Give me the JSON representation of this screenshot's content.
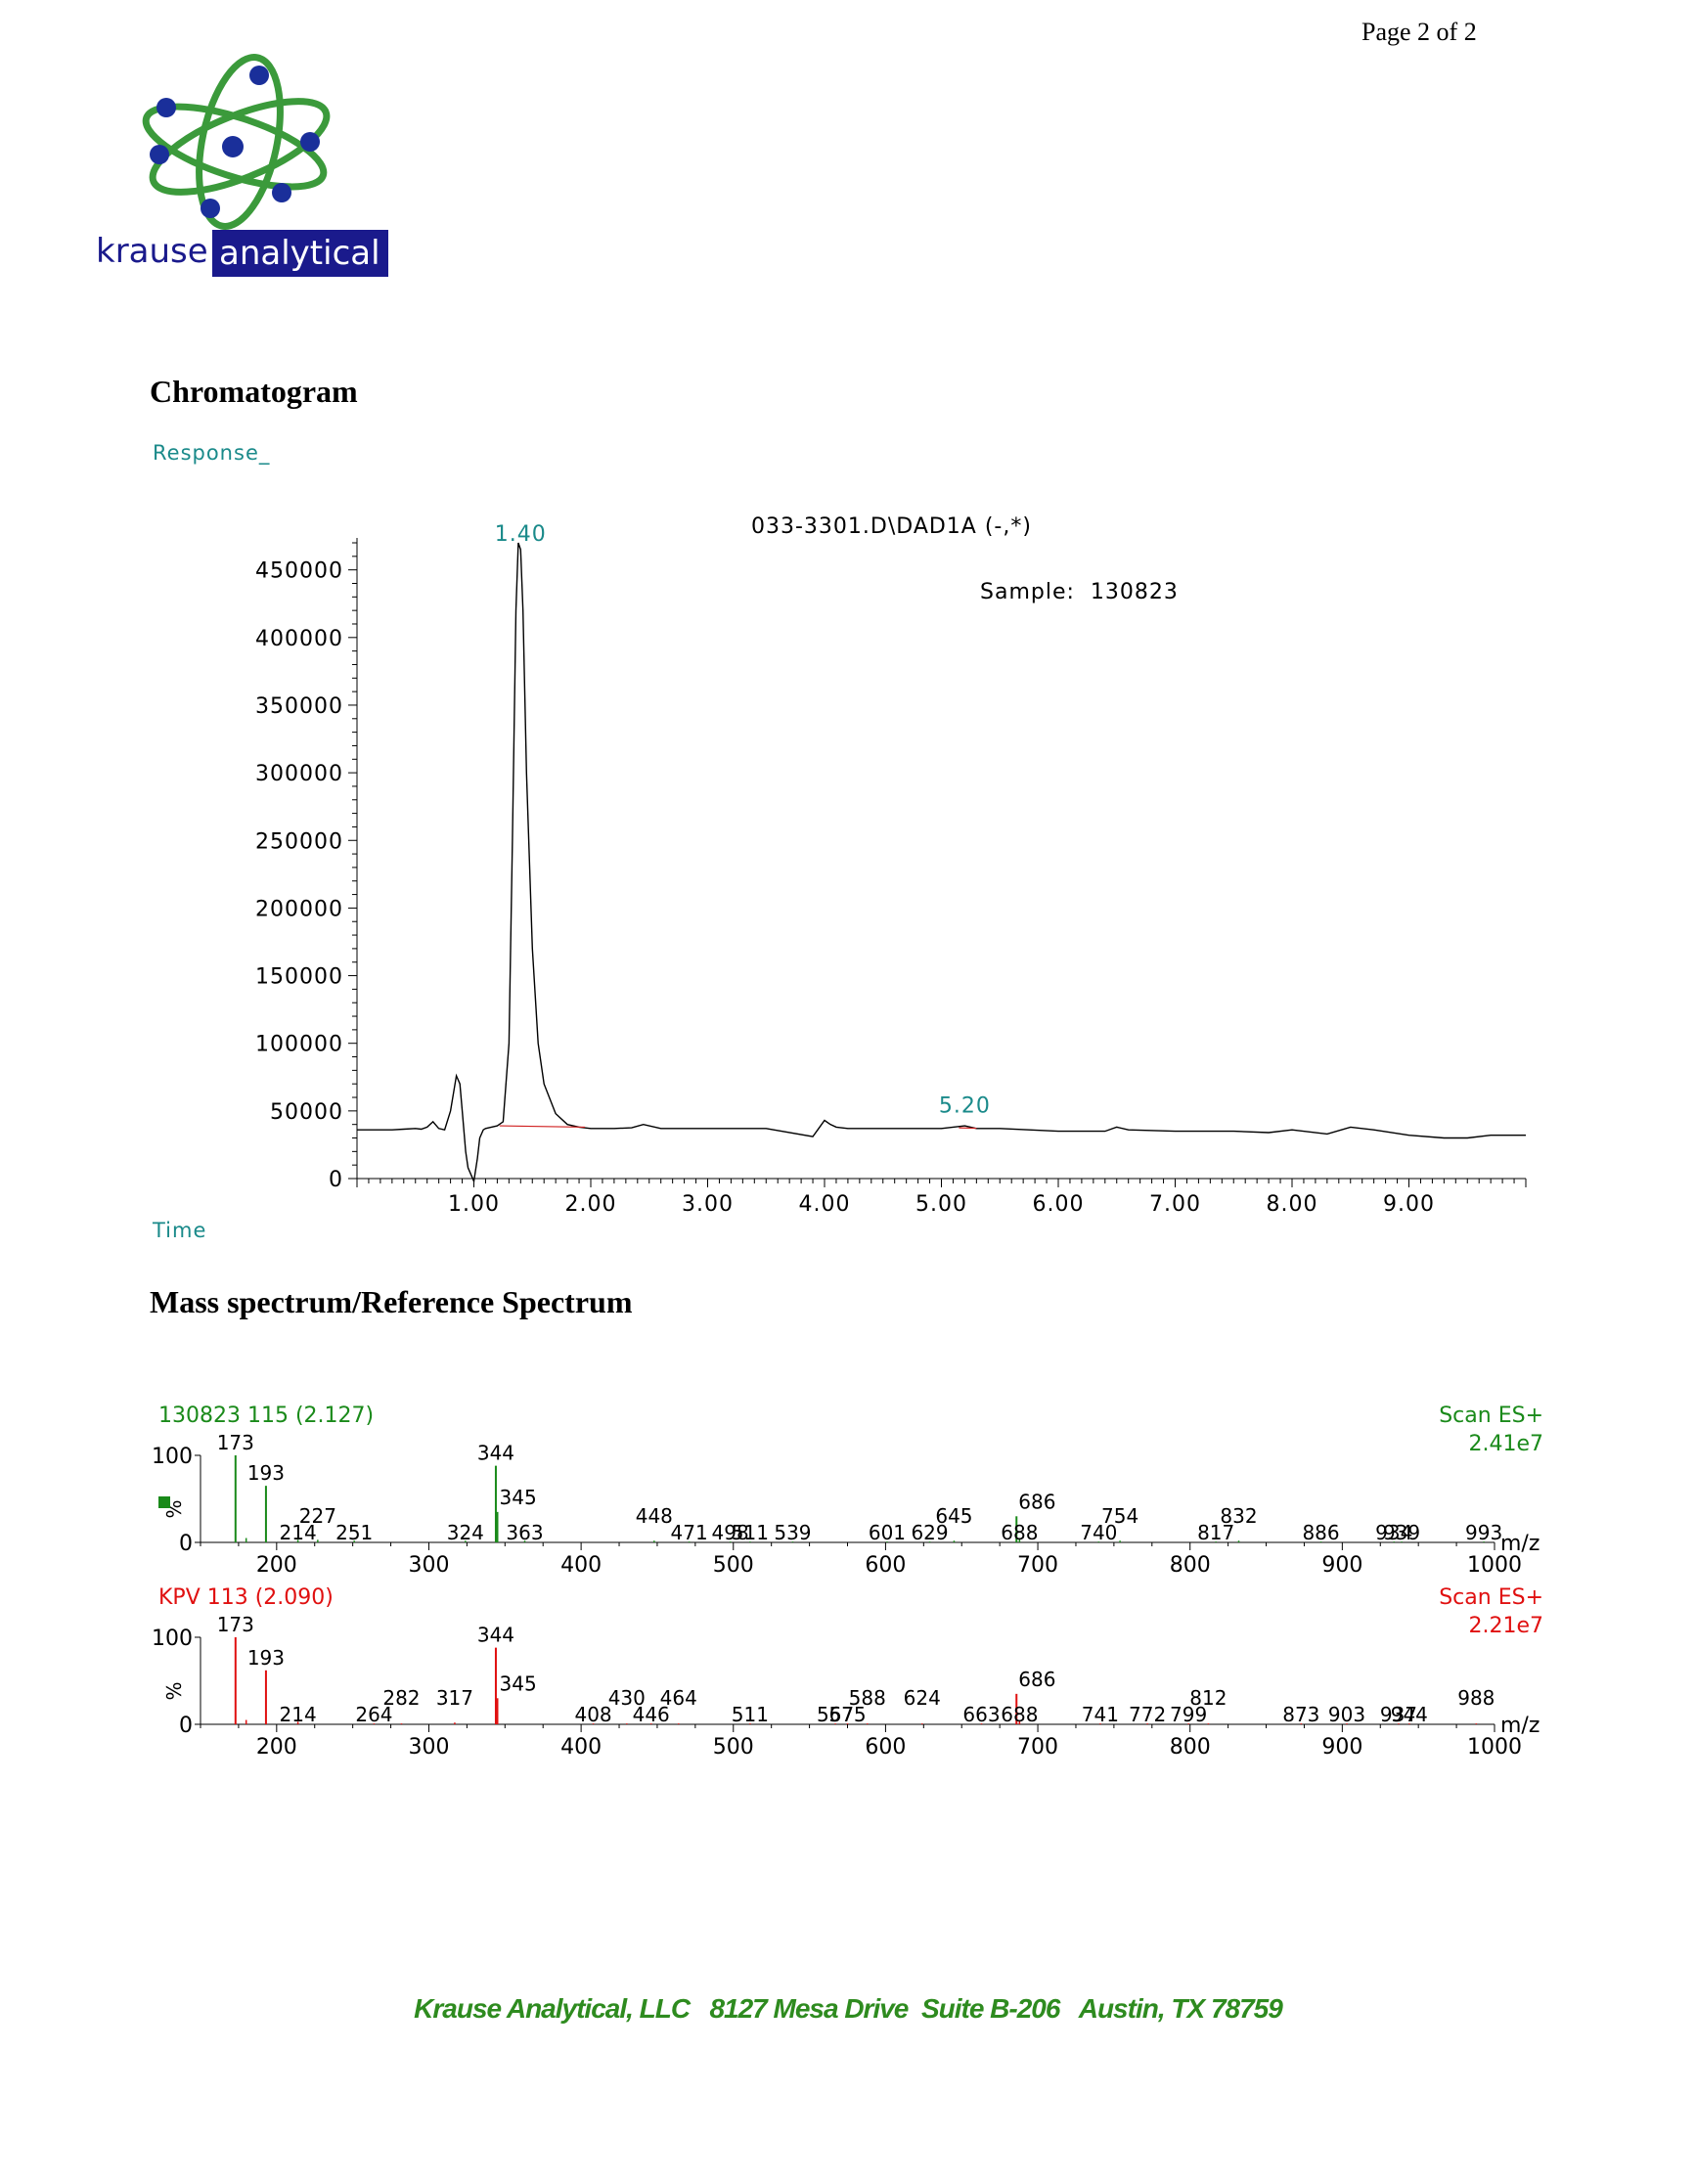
{
  "page": {
    "number": "Page 2 of 2"
  },
  "logo": {
    "word1": "krause",
    "word2": "analytical",
    "icon": "atom-icon",
    "colors": {
      "orbit": "#3b9a3b",
      "nucleus": "#1a2f9a",
      "text_blue": "#1a1a8c"
    }
  },
  "chromatogram": {
    "section_title": "Chromatogram",
    "ylabel": "Response_",
    "xlabel": "Time",
    "file_label": "033-3301.D\\DAD1A (-,*)",
    "sample_label": "Sample:  130823",
    "peak_labels": [
      "1.40",
      "5.20"
    ],
    "colors": {
      "trace": "#000000",
      "baseline": "#d02020",
      "axis_label": "#1a8a8a"
    }
  },
  "mass_spec": {
    "section_title": "Mass spectrum/Reference Spectrum",
    "panels": [
      {
        "title": "130823 115 (2.127)",
        "scan": "Scan ES+",
        "intensity": "2.41e7",
        "color": "#1a8a1a",
        "marker": "legend-square-icon"
      },
      {
        "title": "KPV 113 (2.090)",
        "scan": "Scan ES+",
        "intensity": "2.21e7",
        "color": "#e01010"
      }
    ],
    "ylabel": "%",
    "xlabel": "m/z"
  },
  "footer": {
    "text": "Krause Analytical, LLC   8127 Mesa Drive  Suite B-206   Austin, TX 78759"
  },
  "chart_data": [
    {
      "type": "line",
      "title": "033-3301.D\\DAD1A (-,*)",
      "subtitle": "Sample:  130823",
      "xlabel": "Time",
      "ylabel": "Response_",
      "xlim": [
        0,
        10
      ],
      "ylim": [
        0,
        470000
      ],
      "x_ticks": [
        "1.00",
        "2.00",
        "3.00",
        "4.00",
        "5.00",
        "6.00",
        "7.00",
        "8.00",
        "9.00"
      ],
      "y_ticks": [
        "0",
        "50000",
        "100000",
        "150000",
        "200000",
        "250000",
        "300000",
        "350000",
        "400000",
        "450000"
      ],
      "annotations": [
        {
          "text": "1.40",
          "x": 1.4,
          "y": 470000
        },
        {
          "text": "5.20",
          "x": 5.2,
          "y": 40000
        }
      ],
      "series": [
        {
          "x": [
            0.0,
            0.3,
            0.4,
            0.5,
            0.55,
            0.6,
            0.65,
            0.7,
            0.75,
            0.8,
            0.85,
            0.88,
            0.9,
            0.93,
            0.95,
            1.0,
            1.03,
            1.05,
            1.08,
            1.1,
            1.15,
            1.2,
            1.25,
            1.3,
            1.33,
            1.36,
            1.38,
            1.4,
            1.42,
            1.45,
            1.5,
            1.55,
            1.6,
            1.7,
            1.8,
            1.9,
            2.0,
            2.2,
            2.35,
            2.45,
            2.6,
            3.0,
            3.5,
            3.9,
            3.95,
            4.0,
            4.05,
            4.1,
            4.2,
            4.5,
            5.0,
            5.2,
            5.3,
            5.5,
            6.0,
            6.4,
            6.5,
            6.6,
            7.0,
            7.5,
            7.8,
            8.0,
            8.3,
            8.5,
            8.7,
            9.0,
            9.3,
            9.5,
            9.7,
            10.0
          ],
          "y": [
            36000,
            36000,
            36500,
            37000,
            36500,
            38000,
            42000,
            37000,
            36000,
            50000,
            76000,
            70000,
            50000,
            20000,
            8000,
            -2000,
            15000,
            30000,
            36000,
            37000,
            38000,
            39000,
            42000,
            100000,
            250000,
            420000,
            470000,
            465000,
            420000,
            300000,
            170000,
            100000,
            70000,
            48000,
            40000,
            38000,
            37000,
            37000,
            37500,
            40000,
            37000,
            37000,
            37000,
            31000,
            37000,
            43000,
            40000,
            38000,
            37000,
            37000,
            37000,
            39000,
            37000,
            37000,
            35000,
            35000,
            38000,
            36000,
            35000,
            35000,
            34000,
            36000,
            33000,
            38000,
            36000,
            32000,
            30000,
            30000,
            32000,
            32000
          ]
        }
      ]
    },
    {
      "type": "bar",
      "title": "130823 115 (2.127)",
      "subtitle": "Scan ES+  2.41e7",
      "xlabel": "m/z",
      "ylabel": "%",
      "xlim": [
        150,
        1000
      ],
      "ylim": [
        0,
        100
      ],
      "x_ticks": [
        "200",
        "300",
        "400",
        "500",
        "600",
        "700",
        "800",
        "900",
        "1000"
      ],
      "y_ticks": [
        "0",
        "100"
      ],
      "x": [
        173,
        180,
        193,
        214,
        227,
        251,
        324,
        344,
        345,
        363,
        448,
        471,
        498,
        511,
        539,
        601,
        629,
        645,
        686,
        688,
        740,
        754,
        817,
        832,
        886,
        934,
        939,
        993
      ],
      "values": [
        100,
        5,
        65,
        3,
        3,
        2,
        2,
        88,
        35,
        2,
        2,
        1,
        1,
        1,
        1,
        1,
        1,
        2,
        30,
        5,
        1,
        2,
        1,
        2,
        1,
        1,
        1,
        1
      ],
      "labels": [
        "173",
        "",
        "193",
        "214",
        "227",
        "251",
        "324",
        "344",
        "345",
        "363",
        "448",
        "471",
        "498",
        "511",
        "539",
        "601",
        "629",
        "645",
        "686",
        "688",
        "740",
        "754",
        "817",
        "832",
        "886",
        "934",
        "939",
        "993"
      ]
    },
    {
      "type": "bar",
      "title": "KPV 113 (2.090)",
      "subtitle": "Scan ES+  2.21e7",
      "xlabel": "m/z",
      "ylabel": "%",
      "xlim": [
        150,
        1000
      ],
      "ylim": [
        0,
        100
      ],
      "x_ticks": [
        "200",
        "300",
        "400",
        "500",
        "600",
        "700",
        "800",
        "900",
        "1000"
      ],
      "y_ticks": [
        "0",
        "100"
      ],
      "x": [
        173,
        180,
        193,
        214,
        264,
        282,
        317,
        344,
        345,
        408,
        430,
        446,
        464,
        511,
        567,
        575,
        588,
        624,
        663,
        686,
        688,
        741,
        772,
        799,
        812,
        873,
        903,
        937,
        944,
        988
      ],
      "values": [
        100,
        5,
        62,
        3,
        1,
        1,
        2,
        88,
        30,
        1,
        1,
        1,
        1,
        1,
        1,
        1,
        1,
        1,
        1,
        35,
        4,
        1,
        1,
        1,
        1,
        1,
        1,
        1,
        1,
        1
      ],
      "labels": [
        "173",
        "",
        "193",
        "214",
        "264",
        "282",
        "317",
        "344",
        "345",
        "408",
        "430",
        "446",
        "464",
        "511",
        "567",
        "575",
        "588",
        "624",
        "663",
        "686",
        "688",
        "741",
        "772",
        "799",
        "812",
        "873",
        "903",
        "937",
        "944",
        "988"
      ]
    }
  ]
}
